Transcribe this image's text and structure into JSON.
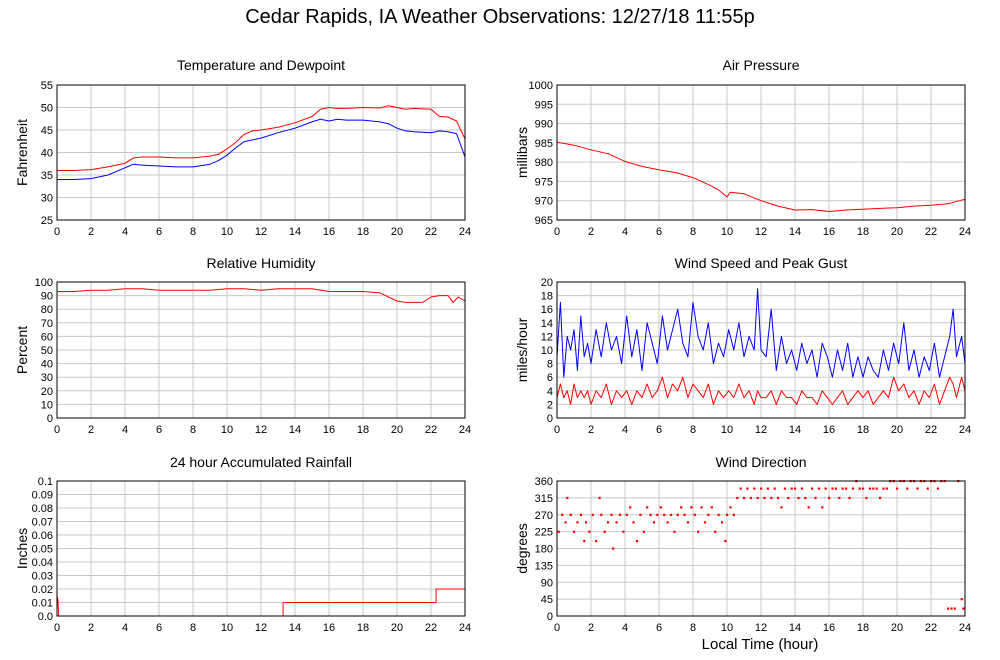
{
  "page": {
    "title": "Cedar Rapids, IA Weather Observations: 12/27/18 11:55p",
    "xlabel": "Local Time (hour)"
  },
  "colors": {
    "red": "#ff0000",
    "blue": "#0000ff",
    "grid": "#c8c8c8"
  },
  "chart_data": [
    {
      "id": "temp",
      "type": "line",
      "title": "Temperature and Dewpoint",
      "ylabel": "Fahrenheit",
      "xlim": [
        0,
        24
      ],
      "xticks": [
        0,
        2,
        4,
        6,
        8,
        10,
        12,
        14,
        16,
        18,
        20,
        22,
        24
      ],
      "ylim": [
        25,
        55
      ],
      "yticks": [
        25,
        30,
        35,
        40,
        45,
        50,
        55
      ],
      "grid": true,
      "series": [
        {
          "color": "#ff0000",
          "x": [
            0,
            1,
            2,
            3,
            4,
            4.5,
            5,
            6,
            7,
            8,
            9,
            9.5,
            10,
            10.5,
            11,
            11.5,
            12,
            13,
            14,
            15,
            15.5,
            16,
            16.5,
            17,
            18,
            19,
            19.5,
            20,
            20.5,
            21,
            22,
            22.5,
            23,
            23.5,
            24
          ],
          "y": [
            36.0,
            36.0,
            36.2,
            36.8,
            37.6,
            38.8,
            39.0,
            39.0,
            38.8,
            38.8,
            39.2,
            39.6,
            40.8,
            42.2,
            44.0,
            44.8,
            45.0,
            45.6,
            46.6,
            48.0,
            49.6,
            50.0,
            49.8,
            49.8,
            50.0,
            49.9,
            50.4,
            50.0,
            49.6,
            49.8,
            49.6,
            48.0,
            47.9,
            47.0,
            43.0
          ]
        },
        {
          "color": "#0000ff",
          "x": [
            0,
            1,
            2,
            3,
            4,
            4.5,
            5,
            6,
            7,
            8,
            9,
            9.5,
            10,
            10.5,
            11,
            11.5,
            12,
            13,
            14,
            15,
            15.5,
            16,
            16.5,
            17,
            18,
            19,
            19.5,
            20,
            20.5,
            21,
            22,
            22.5,
            23,
            23.5,
            24
          ],
          "y": [
            34.0,
            34.0,
            34.2,
            35.0,
            36.6,
            37.4,
            37.2,
            37.0,
            36.8,
            36.8,
            37.4,
            38.2,
            39.4,
            41.0,
            42.4,
            42.8,
            43.2,
            44.4,
            45.4,
            46.8,
            47.4,
            47.0,
            47.4,
            47.2,
            47.2,
            46.8,
            46.4,
            45.4,
            44.8,
            44.6,
            44.4,
            44.8,
            44.6,
            44.2,
            39.0
          ]
        }
      ]
    },
    {
      "id": "pressure",
      "type": "line",
      "title": "Air Pressure",
      "ylabel": "millibars",
      "xlim": [
        0,
        24
      ],
      "xticks": [
        0,
        2,
        4,
        6,
        8,
        10,
        12,
        14,
        16,
        18,
        20,
        22,
        24
      ],
      "ylim": [
        965,
        1000
      ],
      "yticks": [
        965,
        970,
        975,
        980,
        985,
        990,
        995,
        1000
      ],
      "grid": true,
      "series": [
        {
          "color": "#ff0000",
          "x": [
            0,
            1,
            2,
            3,
            4,
            5,
            6,
            7,
            8,
            9,
            9.5,
            10,
            10.2,
            11,
            12,
            13,
            14,
            15,
            16,
            17,
            18,
            19,
            20,
            21,
            22,
            23,
            24
          ],
          "y": [
            985.2,
            984.4,
            983.2,
            982.2,
            980.2,
            978.9,
            978.0,
            977.3,
            976.0,
            974.0,
            972.8,
            971.0,
            972.2,
            971.8,
            970.0,
            968.6,
            967.6,
            967.7,
            967.2,
            967.6,
            967.8,
            968.0,
            968.2,
            968.6,
            968.8,
            969.2,
            970.4
          ]
        }
      ]
    },
    {
      "id": "humidity",
      "type": "line",
      "title": "Relative Humidity",
      "ylabel": "Percent",
      "xlim": [
        0,
        24
      ],
      "xticks": [
        0,
        2,
        4,
        6,
        8,
        10,
        12,
        14,
        16,
        18,
        20,
        22,
        24
      ],
      "ylim": [
        0,
        100
      ],
      "yticks": [
        0,
        10,
        20,
        30,
        40,
        50,
        60,
        70,
        80,
        90,
        100
      ],
      "grid": true,
      "series": [
        {
          "color": "#ff0000",
          "x": [
            0,
            1,
            2,
            3,
            4,
            5,
            6,
            7,
            8,
            9,
            10,
            11,
            12,
            13,
            14,
            15,
            16,
            17,
            18,
            19,
            19.5,
            20,
            20.5,
            21,
            21.5,
            22,
            22.5,
            23,
            23.3,
            23.6,
            24
          ],
          "y": [
            93,
            93,
            94,
            94,
            95,
            95,
            94,
            94,
            94,
            94,
            95,
            95,
            94,
            95,
            95,
            95,
            93,
            93,
            93,
            92,
            89,
            86,
            85,
            85,
            85,
            89,
            90,
            90,
            85,
            89,
            86
          ]
        }
      ]
    },
    {
      "id": "wind",
      "type": "line",
      "title": "Wind Speed and Peak Gust",
      "ylabel": "miles/hour",
      "xlim": [
        0,
        24
      ],
      "xticks": [
        0,
        2,
        4,
        6,
        8,
        10,
        12,
        14,
        16,
        18,
        20,
        22,
        24
      ],
      "ylim": [
        0,
        20
      ],
      "yticks": [
        0,
        2,
        4,
        6,
        8,
        10,
        12,
        14,
        16,
        18,
        20
      ],
      "grid": true,
      "series": [
        {
          "color": "#0000ff",
          "x": [
            0,
            0.2,
            0.4,
            0.6,
            0.8,
            1,
            1.2,
            1.4,
            1.6,
            1.8,
            2,
            2.3,
            2.6,
            2.9,
            3.2,
            3.5,
            3.8,
            4.1,
            4.4,
            4.7,
            5,
            5.3,
            5.6,
            5.9,
            6.2,
            6.5,
            6.8,
            7.1,
            7.4,
            7.7,
            8,
            8.3,
            8.6,
            8.9,
            9.2,
            9.5,
            9.8,
            10.1,
            10.4,
            10.7,
            11,
            11.3,
            11.6,
            11.8,
            12,
            12.3,
            12.6,
            12.9,
            13.2,
            13.5,
            13.8,
            14.1,
            14.4,
            14.7,
            15,
            15.3,
            15.6,
            15.9,
            16.2,
            16.5,
            16.8,
            17.1,
            17.4,
            17.7,
            18,
            18.3,
            18.6,
            18.9,
            19.2,
            19.5,
            19.8,
            20.1,
            20.4,
            20.7,
            21,
            21.3,
            21.6,
            21.9,
            22.2,
            22.5,
            22.8,
            23.1,
            23.3,
            23.5,
            23.8,
            24
          ],
          "y": [
            9,
            17,
            6,
            12,
            10,
            13,
            7,
            15,
            9,
            11,
            8,
            13,
            9,
            14,
            10,
            12,
            8,
            15,
            9,
            13,
            7,
            14,
            11,
            8,
            15,
            10,
            13,
            16,
            11,
            9,
            17,
            12,
            10,
            14,
            8,
            11,
            9,
            13,
            10,
            14,
            9,
            12,
            10,
            19,
            10,
            9,
            16,
            7,
            12,
            8,
            10,
            7,
            11,
            8,
            10,
            6,
            11,
            9,
            6,
            10,
            7,
            11,
            6,
            9,
            6,
            9,
            7,
            6,
            10,
            7,
            11,
            8,
            14,
            7,
            10,
            6,
            9,
            7,
            11,
            6,
            9,
            12,
            16,
            9,
            12,
            8
          ]
        },
        {
          "color": "#ff0000",
          "x": [
            0,
            0.2,
            0.4,
            0.6,
            0.8,
            1,
            1.2,
            1.4,
            1.6,
            1.8,
            2,
            2.3,
            2.6,
            2.9,
            3.2,
            3.5,
            3.8,
            4.1,
            4.4,
            4.7,
            5,
            5.3,
            5.6,
            5.9,
            6.2,
            6.5,
            6.8,
            7.1,
            7.4,
            7.7,
            8,
            8.3,
            8.6,
            8.9,
            9.2,
            9.5,
            9.8,
            10.1,
            10.4,
            10.7,
            11,
            11.3,
            11.6,
            11.8,
            12,
            12.3,
            12.6,
            12.9,
            13.2,
            13.5,
            13.8,
            14.1,
            14.4,
            14.7,
            15,
            15.3,
            15.6,
            15.9,
            16.2,
            16.5,
            16.8,
            17.1,
            17.4,
            17.7,
            18,
            18.3,
            18.6,
            18.9,
            19.2,
            19.5,
            19.8,
            20.1,
            20.4,
            20.7,
            21,
            21.3,
            21.6,
            21.9,
            22.2,
            22.5,
            22.8,
            23.1,
            23.3,
            23.5,
            23.8,
            24
          ],
          "y": [
            3,
            5,
            3,
            4,
            2,
            5,
            3,
            4,
            3,
            4,
            2,
            4,
            3,
            5,
            2,
            4,
            3,
            4,
            2,
            4,
            3,
            5,
            3,
            4,
            6,
            3,
            5,
            4,
            6,
            3,
            5,
            4,
            3,
            5,
            2,
            4,
            3,
            4,
            3,
            5,
            3,
            4,
            2,
            4,
            3,
            3,
            4,
            2,
            4,
            3,
            3,
            2,
            4,
            3,
            3,
            2,
            4,
            3,
            2,
            3,
            4,
            2,
            3,
            4,
            3,
            4,
            2,
            3,
            4,
            3,
            6,
            4,
            5,
            3,
            4,
            2,
            4,
            3,
            5,
            2,
            4,
            6,
            5,
            3,
            6,
            4
          ]
        }
      ]
    },
    {
      "id": "rain",
      "type": "line",
      "title": "24 hour Accumulated Rainfall",
      "ylabel": "Inches",
      "xlim": [
        0,
        24
      ],
      "xticks": [
        0,
        2,
        4,
        6,
        8,
        10,
        12,
        14,
        16,
        18,
        20,
        22,
        24
      ],
      "ylim": [
        0,
        0.1
      ],
      "yticks": [
        0.0,
        0.01,
        0.02,
        0.03,
        0.04,
        0.05,
        0.06,
        0.07,
        0.08,
        0.09,
        0.1
      ],
      "grid": true,
      "series": [
        {
          "color": "#ff0000",
          "x": [
            0,
            0.05,
            0.1,
            13.3,
            13.3,
            22.3,
            22.3,
            24
          ],
          "y": [
            0.015,
            0.012,
            0,
            0,
            0.01,
            0.01,
            0.02,
            0.02
          ]
        }
      ]
    },
    {
      "id": "direction",
      "type": "scatter",
      "title": "Wind Direction",
      "ylabel": "degrees",
      "xlim": [
        0,
        24
      ],
      "xticks": [
        0,
        2,
        4,
        6,
        8,
        10,
        12,
        14,
        16,
        18,
        20,
        22,
        24
      ],
      "ylim": [
        0,
        360
      ],
      "yticks": [
        0,
        45,
        90,
        135,
        180,
        225,
        270,
        315,
        360
      ],
      "grid": true,
      "series": [
        {
          "color": "#ff0000",
          "x": [
            0.1,
            0.3,
            0.5,
            0.6,
            0.8,
            1.0,
            1.2,
            1.4,
            1.6,
            1.7,
            1.9,
            2.1,
            2.3,
            2.5,
            2.6,
            2.8,
            3.0,
            3.2,
            3.3,
            3.5,
            3.7,
            3.9,
            4.1,
            4.3,
            4.5,
            4.7,
            4.9,
            5.1,
            5.3,
            5.5,
            5.7,
            5.9,
            6.1,
            6.3,
            6.5,
            6.7,
            6.9,
            7.1,
            7.3,
            7.5,
            7.7,
            7.9,
            8.1,
            8.3,
            8.5,
            8.7,
            8.9,
            9.1,
            9.3,
            9.5,
            9.7,
            9.9,
            10.0,
            10.2,
            10.4,
            10.6,
            10.8,
            11.0,
            11.2,
            11.4,
            11.6,
            11.8,
            12.0,
            12.2,
            12.4,
            12.6,
            12.8,
            13.0,
            13.2,
            13.4,
            13.6,
            13.8,
            14.0,
            14.2,
            14.4,
            14.6,
            14.8,
            15.0,
            15.2,
            15.4,
            15.6,
            15.8,
            16.0,
            16.2,
            16.4,
            16.6,
            16.8,
            17.0,
            17.2,
            17.4,
            17.6,
            17.8,
            18.0,
            18.2,
            18.4,
            18.6,
            18.8,
            19.0,
            19.2,
            19.4,
            19.6,
            19.8,
            20.0,
            20.2,
            20.4,
            20.6,
            20.8,
            21.0,
            21.2,
            21.4,
            21.6,
            21.8,
            22.0,
            22.2,
            22.4,
            22.6,
            22.8,
            23.0,
            23.2,
            23.4,
            23.6,
            23.8,
            23.9
          ],
          "y": [
            225,
            270,
            250,
            315,
            270,
            225,
            250,
            270,
            200,
            250,
            225,
            270,
            200,
            315,
            270,
            225,
            250,
            270,
            180,
            250,
            270,
            225,
            270,
            290,
            250,
            200,
            270,
            225,
            290,
            270,
            250,
            270,
            290,
            270,
            250,
            270,
            225,
            270,
            290,
            270,
            250,
            290,
            270,
            225,
            290,
            250,
            270,
            290,
            225,
            270,
            250,
            200,
            270,
            290,
            270,
            315,
            340,
            315,
            340,
            315,
            340,
            315,
            340,
            315,
            340,
            315,
            340,
            315,
            290,
            340,
            315,
            340,
            340,
            315,
            340,
            315,
            290,
            340,
            315,
            340,
            290,
            340,
            315,
            340,
            340,
            315,
            340,
            340,
            315,
            340,
            360,
            340,
            340,
            315,
            340,
            340,
            340,
            315,
            340,
            340,
            360,
            360,
            340,
            360,
            360,
            340,
            360,
            360,
            340,
            360,
            360,
            340,
            360,
            360,
            340,
            360,
            360,
            20,
            20,
            20,
            360,
            45,
            20
          ]
        }
      ]
    }
  ]
}
